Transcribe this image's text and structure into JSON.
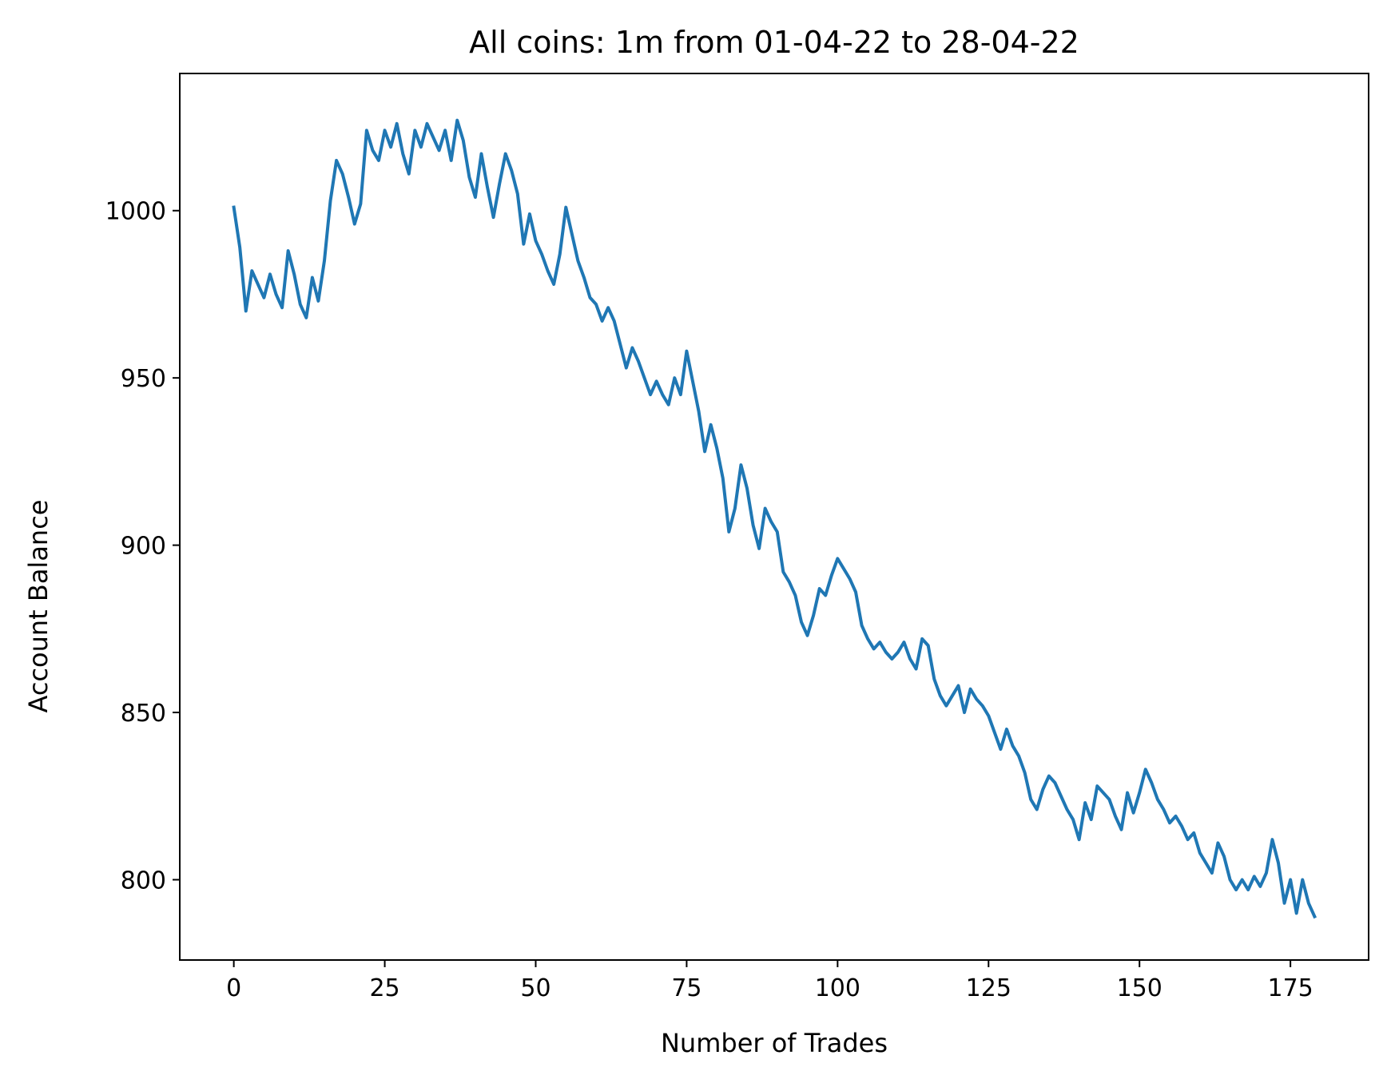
{
  "chart_data": {
    "type": "line",
    "title": "All coins: 1m from 01-04-22 to 28-04-22",
    "xlabel": "Number of Trades",
    "ylabel": "Account Balance",
    "xlim": [
      -8.95,
      187.95
    ],
    "ylim": [
      776,
      1041
    ],
    "xticks": [
      0,
      25,
      50,
      75,
      100,
      125,
      150,
      175
    ],
    "yticks": [
      800,
      850,
      900,
      950,
      1000
    ],
    "xtick_labels": [
      "0",
      "25",
      "50",
      "75",
      "100",
      "125",
      "150",
      "175"
    ],
    "ytick_labels": [
      "800",
      "850",
      "900",
      "950",
      "1000"
    ],
    "grid": false,
    "line_color": "#1f77b4",
    "series": [
      {
        "values": [
          1001,
          989,
          970,
          982,
          978,
          974,
          981,
          975,
          971,
          988,
          981,
          972,
          968,
          980,
          973,
          985,
          1003,
          1015,
          1011,
          1004,
          996,
          1002,
          1024,
          1018,
          1015,
          1024,
          1019,
          1026,
          1017,
          1011,
          1024,
          1019,
          1026,
          1022,
          1018,
          1024,
          1015,
          1027,
          1021,
          1010,
          1004,
          1017,
          1007,
          998,
          1008,
          1017,
          1012,
          1005,
          990,
          999,
          991,
          987,
          982,
          978,
          987,
          1001,
          993,
          985,
          980,
          974,
          972,
          967,
          971,
          967,
          960,
          953,
          959,
          955,
          950,
          945,
          949,
          945,
          942,
          950,
          945,
          958,
          949,
          940,
          928,
          936,
          929,
          920,
          904,
          911,
          924,
          917,
          906,
          899,
          911,
          907,
          904,
          892,
          889,
          885,
          877,
          873,
          879,
          887,
          885,
          891,
          896,
          893,
          890,
          886,
          876,
          872,
          869,
          871,
          868,
          866,
          868,
          871,
          866,
          863,
          872,
          870,
          860,
          855,
          852,
          855,
          858,
          850,
          857,
          854,
          852,
          849,
          844,
          839,
          845,
          840,
          837,
          832,
          824,
          821,
          827,
          831,
          829,
          825,
          821,
          818,
          812,
          823,
          818,
          828,
          826,
          824,
          819,
          815,
          826,
          820,
          826,
          833,
          829,
          824,
          821,
          817,
          819,
          816,
          812,
          814,
          808,
          805,
          802,
          811,
          807,
          800,
          797,
          800,
          797,
          801,
          798,
          802,
          812,
          805,
          793,
          800,
          790,
          800,
          793,
          789
        ]
      }
    ]
  }
}
